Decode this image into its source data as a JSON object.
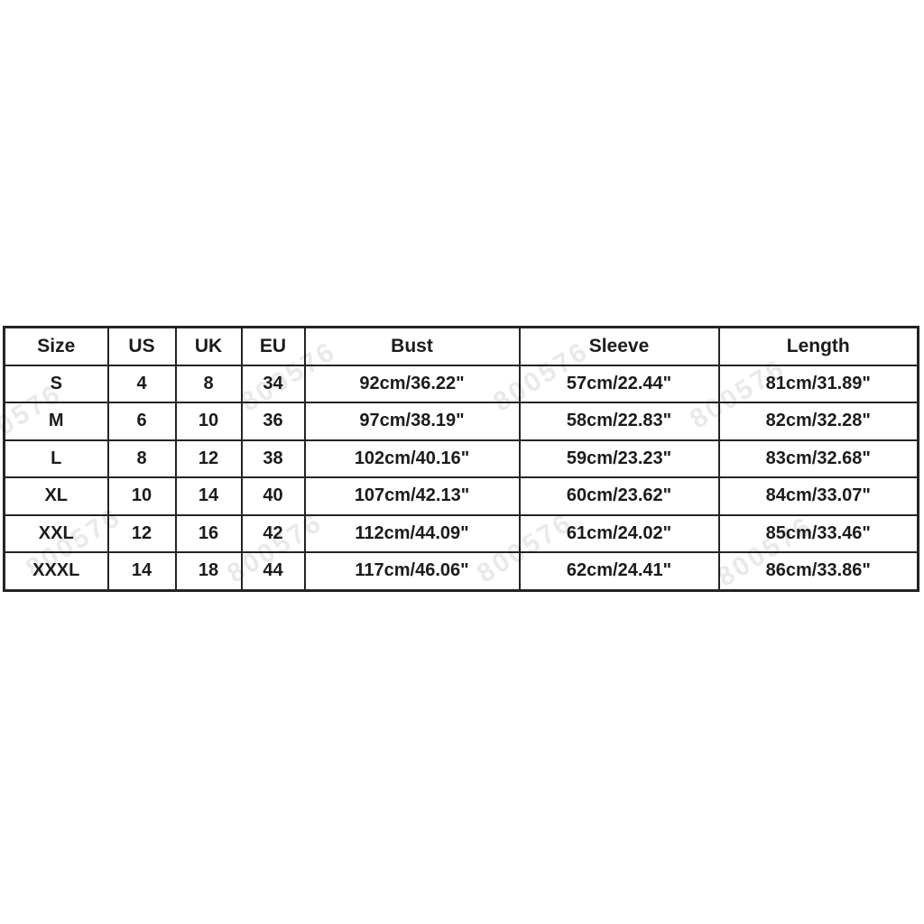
{
  "page": {
    "background_color": "#ffffff"
  },
  "colors": {
    "border": "#242424",
    "text": "#1b1b1b",
    "watermark_text_color": "#e6e6e6"
  },
  "watermark": {
    "text": "800576"
  },
  "chart_data": {
    "type": "table",
    "title": "",
    "columns": [
      "Size",
      "US",
      "UK",
      "EU",
      "Bust",
      "Sleeve",
      "Length"
    ],
    "rows": [
      [
        "S",
        "4",
        "8",
        "34",
        "92cm/36.22\"",
        "57cm/22.44\"",
        "81cm/31.89\""
      ],
      [
        "M",
        "6",
        "10",
        "36",
        "97cm/38.19\"",
        "58cm/22.83\"",
        "82cm/32.28\""
      ],
      [
        "L",
        "8",
        "12",
        "38",
        "102cm/40.16\"",
        "59cm/23.23\"",
        "83cm/32.68\""
      ],
      [
        "XL",
        "10",
        "14",
        "40",
        "107cm/42.13\"",
        "60cm/23.62\"",
        "84cm/33.07\""
      ],
      [
        "XXL",
        "12",
        "16",
        "42",
        "112cm/44.09\"",
        "61cm/24.02\"",
        "85cm/33.46\""
      ],
      [
        "XXXL",
        "14",
        "18",
        "44",
        "117cm/46.06\"",
        "62cm/24.41\"",
        "86cm/33.86\""
      ]
    ]
  }
}
